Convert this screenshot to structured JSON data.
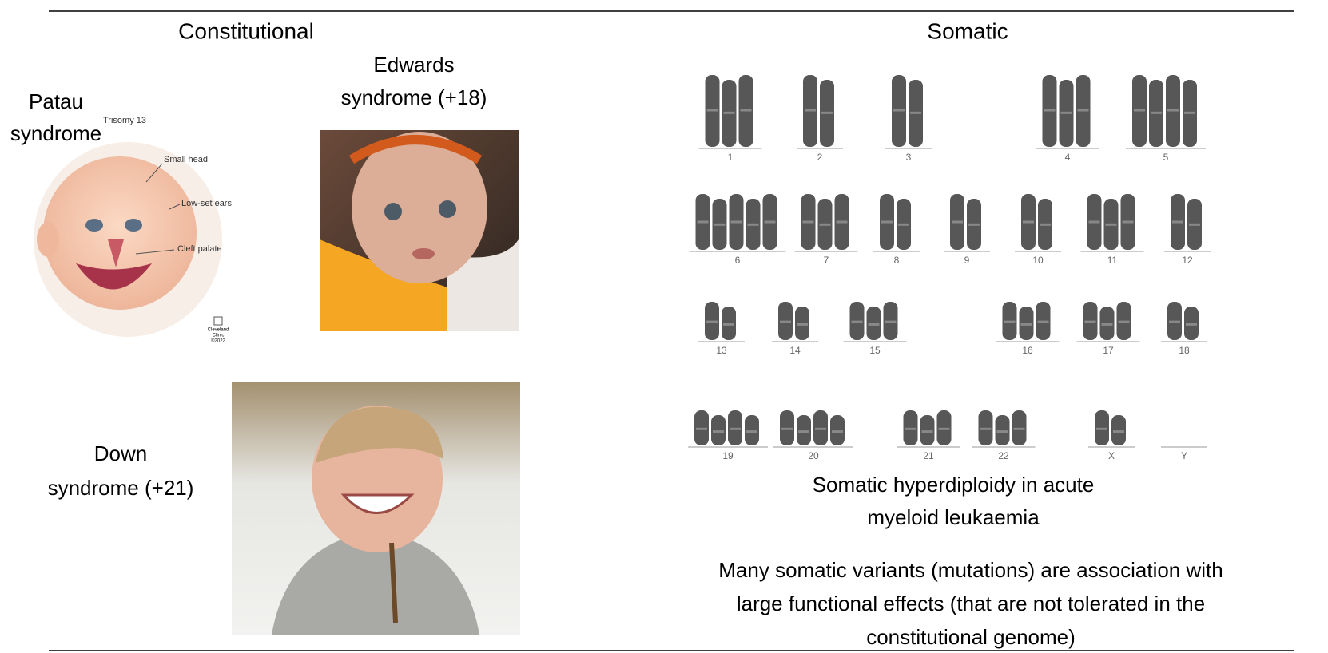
{
  "header": {
    "left_title": "Constitutional",
    "right_title": "Somatic"
  },
  "constitutional": {
    "patau": {
      "label_line1": "Patau",
      "label_line2": "syndrome",
      "figure_title": "Trisomy 13",
      "annotations": [
        "Small head",
        "Low-set ears",
        "Cleft palate"
      ],
      "credit": [
        "Cleveland",
        "Clinic",
        "©2022"
      ]
    },
    "edwards": {
      "label_line1": "Edwards",
      "label_line2": "syndrome (+18)"
    },
    "down": {
      "label_line1": "Down",
      "label_line2": "syndrome (+21)"
    }
  },
  "somatic": {
    "karyotype": {
      "rows": [
        [
          "1",
          "2",
          "3",
          "4",
          "5"
        ],
        [
          "6",
          "7",
          "8",
          "9",
          "10",
          "11",
          "12"
        ],
        [
          "13",
          "14",
          "15",
          "16",
          "17",
          "18"
        ],
        [
          "19",
          "20",
          "21",
          "22",
          "X",
          "Y"
        ]
      ]
    },
    "caption": [
      "Somatic hyperdiploidy in acute",
      "myeloid leukaemia"
    ],
    "note": [
      "Many somatic variants (mutations) are association with",
      "large functional effects (that are not tolerated in the",
      "constitutional genome)"
    ]
  }
}
